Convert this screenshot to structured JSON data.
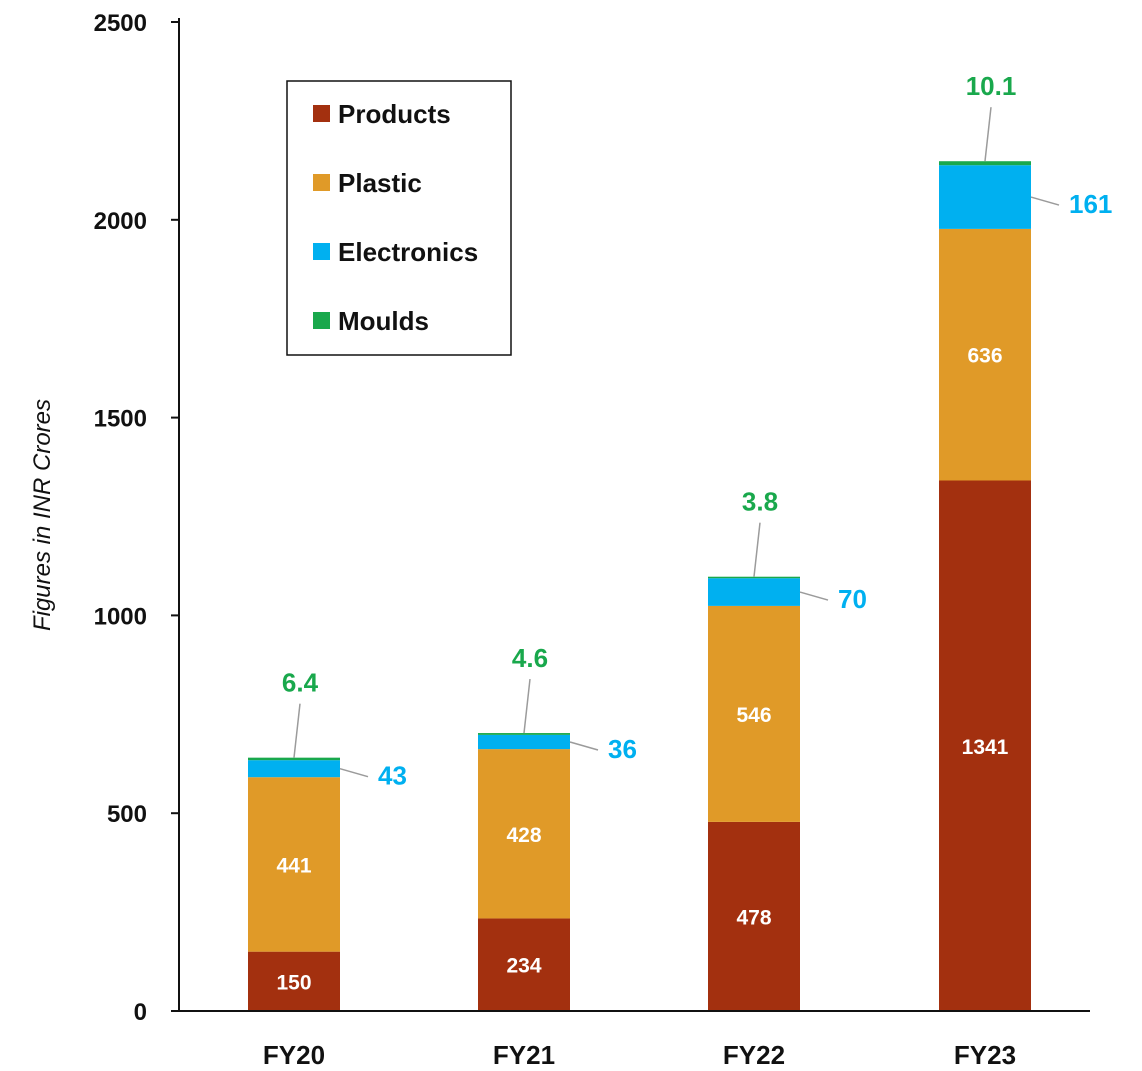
{
  "chart_data": {
    "type": "bar",
    "stacked": true,
    "title": "",
    "xlabel": "",
    "ylabel": "Figures in INR Crores",
    "ylim": [
      0,
      2500
    ],
    "yticks": [
      0,
      500,
      1000,
      1500,
      2000,
      2500
    ],
    "categories": [
      "FY20",
      "FY21",
      "FY22",
      "FY23"
    ],
    "series": [
      {
        "name": "Products",
        "color": "#a3300f",
        "values": [
          150,
          234,
          478,
          1341
        ],
        "labels": [
          "150",
          "234",
          "478",
          "1341"
        ]
      },
      {
        "name": "Plastic",
        "color": "#e09a28",
        "values": [
          441,
          428,
          546,
          636
        ],
        "labels": [
          "441",
          "428",
          "546",
          "636"
        ]
      },
      {
        "name": "Electronics",
        "color": "#00b0f0",
        "values": [
          43,
          36,
          70,
          161
        ],
        "labels": [
          "43",
          "36",
          "70",
          "161"
        ]
      },
      {
        "name": "Moulds",
        "color": "#19a84c",
        "values": [
          6.4,
          4.6,
          3.8,
          10.1
        ],
        "labels": [
          "6.4",
          "4.6",
          "3.8",
          "10.1"
        ]
      }
    ],
    "legend": {
      "position": "top-left",
      "boxed": true
    },
    "grid": false
  }
}
